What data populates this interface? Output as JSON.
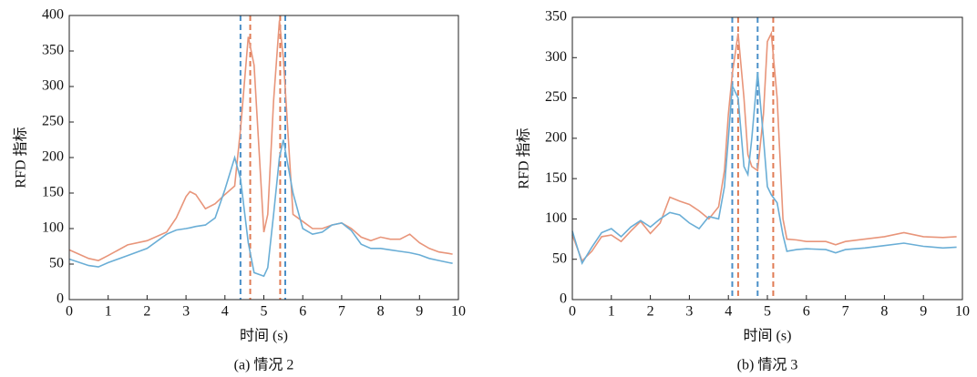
{
  "chart_data": [
    {
      "type": "line",
      "caption": "(a) 情况 2",
      "xlabel": "时间 (s)",
      "ylabel": "RFD 指标",
      "x": [
        0,
        0.5,
        0.75,
        1,
        1.5,
        2,
        2.5,
        2.75,
        3,
        3.1,
        3.25,
        3.5,
        3.75,
        4,
        4.25,
        4.4,
        4.6,
        4.75,
        5,
        5.1,
        5.25,
        5.4,
        5.5,
        5.75,
        6,
        6.25,
        6.5,
        6.75,
        7,
        7.25,
        7.5,
        7.75,
        8,
        8.25,
        8.5,
        8.75,
        9,
        9.25,
        9.5,
        9.75,
        9.85
      ],
      "series": [
        {
          "color": "#e8957a",
          "values": [
            70,
            58,
            55,
            62,
            77,
            83,
            95,
            115,
            145,
            152,
            148,
            128,
            135,
            148,
            160,
            240,
            370,
            330,
            95,
            120,
            280,
            393,
            340,
            120,
            110,
            100,
            100,
            105,
            108,
            100,
            88,
            83,
            88,
            85,
            85,
            92,
            80,
            72,
            67,
            65,
            64
          ]
        },
        {
          "color": "#6aaed6",
          "values": [
            57,
            48,
            46,
            52,
            62,
            72,
            92,
            98,
            100,
            101,
            103,
            105,
            115,
            155,
            200,
            170,
            80,
            38,
            33,
            45,
            120,
            200,
            225,
            150,
            100,
            92,
            95,
            105,
            108,
            97,
            78,
            72,
            72,
            70,
            68,
            66,
            63,
            58,
            55,
            52,
            51
          ]
        }
      ],
      "vlines": [
        {
          "x": 4.4,
          "color": "#4a8fc8"
        },
        {
          "x": 4.65,
          "color": "#e07b54"
        },
        {
          "x": 5.42,
          "color": "#e07b54"
        },
        {
          "x": 5.55,
          "color": "#4a8fc8"
        }
      ],
      "xlim": [
        0,
        10
      ],
      "xticks": [
        0,
        1,
        2,
        3,
        4,
        5,
        6,
        7,
        8,
        9,
        10
      ],
      "ylim": [
        0,
        400
      ],
      "yticks": [
        0,
        50,
        100,
        150,
        200,
        250,
        300,
        350,
        400
      ]
    },
    {
      "type": "line",
      "caption": "(b) 情况 3",
      "xlabel": "时间 (s)",
      "ylabel": "RFD 指标",
      "x": [
        0,
        0.25,
        0.5,
        0.75,
        1,
        1.25,
        1.5,
        1.75,
        2,
        2.25,
        2.5,
        2.75,
        3,
        3.25,
        3.5,
        3.75,
        3.9,
        4,
        4.1,
        4.25,
        4.4,
        4.5,
        4.6,
        4.75,
        4.9,
        5,
        5.1,
        5.25,
        5.4,
        5.5,
        5.75,
        6,
        6.5,
        6.75,
        7,
        7.5,
        8,
        8.5,
        9,
        9.5,
        9.85
      ],
      "series": [
        {
          "color": "#e8957a",
          "values": [
            80,
            48,
            60,
            78,
            80,
            72,
            85,
            97,
            82,
            95,
            127,
            122,
            118,
            110,
            100,
            115,
            160,
            230,
            280,
            330,
            250,
            180,
            165,
            160,
            230,
            320,
            330,
            250,
            100,
            75,
            74,
            72,
            72,
            68,
            72,
            75,
            78,
            83,
            78,
            77,
            78
          ]
        },
        {
          "color": "#6aaed6",
          "values": [
            85,
            45,
            65,
            83,
            88,
            78,
            90,
            98,
            90,
            100,
            108,
            105,
            95,
            88,
            103,
            100,
            140,
            200,
            265,
            250,
            165,
            155,
            200,
            282,
            200,
            140,
            130,
            120,
            80,
            60,
            62,
            63,
            62,
            58,
            62,
            64,
            67,
            70,
            66,
            64,
            65
          ]
        }
      ],
      "vlines": [
        {
          "x": 4.1,
          "color": "#4a8fc8"
        },
        {
          "x": 4.25,
          "color": "#e07b54"
        },
        {
          "x": 4.75,
          "color": "#4a8fc8"
        },
        {
          "x": 5.15,
          "color": "#e07b54"
        }
      ],
      "xlim": [
        0,
        10
      ],
      "xticks": [
        0,
        1,
        2,
        3,
        4,
        5,
        6,
        7,
        8,
        9,
        10
      ],
      "ylim": [
        0,
        350
      ],
      "yticks": [
        0,
        50,
        100,
        150,
        200,
        250,
        300,
        350
      ]
    }
  ]
}
